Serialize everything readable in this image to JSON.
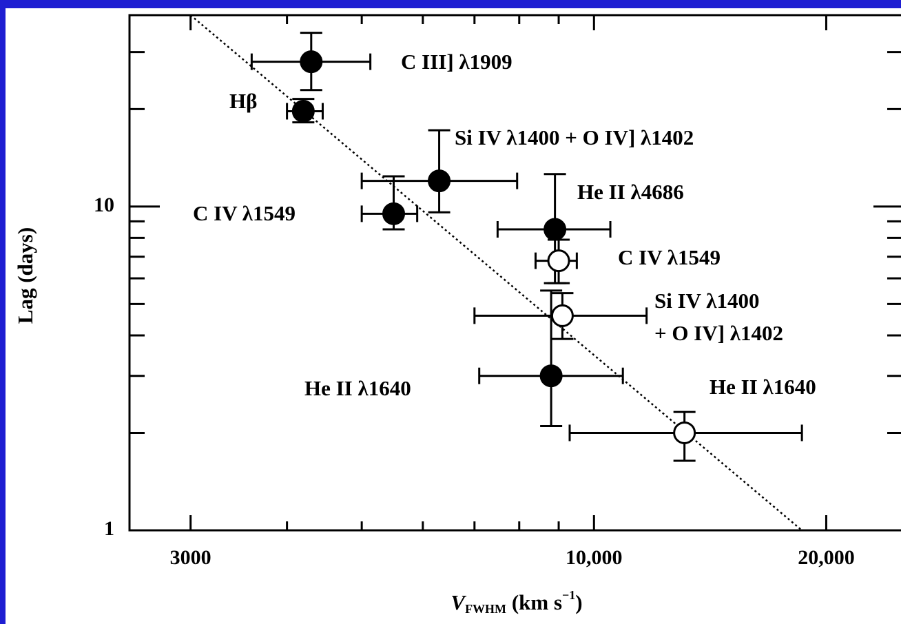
{
  "chart_data": {
    "type": "scatter",
    "xlabel": [
      "V",
      "FWHM",
      " (km s",
      "−1",
      ")"
    ],
    "ylabel": "Lag (days)",
    "xscale": "log",
    "yscale": "log",
    "xlim": [
      2500,
      25000
    ],
    "ylim": [
      1,
      39
    ],
    "xticks": [
      3000,
      {
        "value": 10000,
        "label": "10,000"
      },
      {
        "value": 20000,
        "label": "20,000"
      }
    ],
    "xticks_minor": [
      4000,
      5000,
      6000,
      7000,
      8000,
      9000
    ],
    "yticks": [
      1,
      10
    ],
    "yticks_minor": [
      2,
      3,
      4,
      5,
      6,
      7,
      8,
      9,
      20,
      30
    ],
    "fit_line": {
      "x": [
        3000,
        18600
      ],
      "y": [
        39,
        1
      ],
      "style": "dotted"
    },
    "points": [
      {
        "label": [
          "C III] λ1909"
        ],
        "filled": true,
        "x": 4300,
        "x_minus": 700,
        "x_plus": 830,
        "y": 28.0,
        "y_minus": 5.1,
        "y_plus": 6.4
      },
      {
        "label": [
          "Hβ"
        ],
        "filled": true,
        "x": 4200,
        "x_minus": 200,
        "x_plus": 250,
        "y": 19.7,
        "y_minus": 1.5,
        "y_plus": 1.8
      },
      {
        "label": [
          "Si IV λ1400 + O IV] λ1402"
        ],
        "filled": true,
        "x": 6300,
        "x_minus": 1300,
        "x_plus": 1650,
        "y": 12.0,
        "y_minus": 2.4,
        "y_plus": 5.2
      },
      {
        "label": [
          "C IV λ1549"
        ],
        "filled": true,
        "x": 5500,
        "x_minus": 500,
        "x_plus": 400,
        "y": 9.5,
        "y_minus": 1.0,
        "y_plus": 2.9
      },
      {
        "label": [
          "He II λ4686"
        ],
        "filled": true,
        "x": 8900,
        "x_minus": 1400,
        "x_plus": 1600,
        "y": 8.5,
        "y_minus": 2.7,
        "y_plus": 4.1
      },
      {
        "label": [
          "He II λ1640"
        ],
        "filled": true,
        "x": 8800,
        "x_minus": 1700,
        "x_plus": 2100,
        "y": 3.0,
        "y_minus": 0.9,
        "y_plus": 2.5
      },
      {
        "label": [
          "C IV λ1549"
        ],
        "filled": false,
        "x": 9000,
        "x_minus": 600,
        "x_plus": 500,
        "y": 6.8,
        "y_minus": 1.0,
        "y_plus": 1.1
      },
      {
        "label": [
          "Si IV λ1400",
          "+ O IV] λ1402"
        ],
        "filled": false,
        "x": 9100,
        "x_minus": 2100,
        "x_plus": 2600,
        "y": 4.6,
        "y_minus": 0.7,
        "y_plus": 0.8
      },
      {
        "label": [
          "He II λ1640"
        ],
        "filled": false,
        "x": 13100,
        "x_minus": 3800,
        "x_plus": 5500,
        "y": 2.0,
        "y_minus": 0.36,
        "y_plus": 0.32
      }
    ]
  }
}
